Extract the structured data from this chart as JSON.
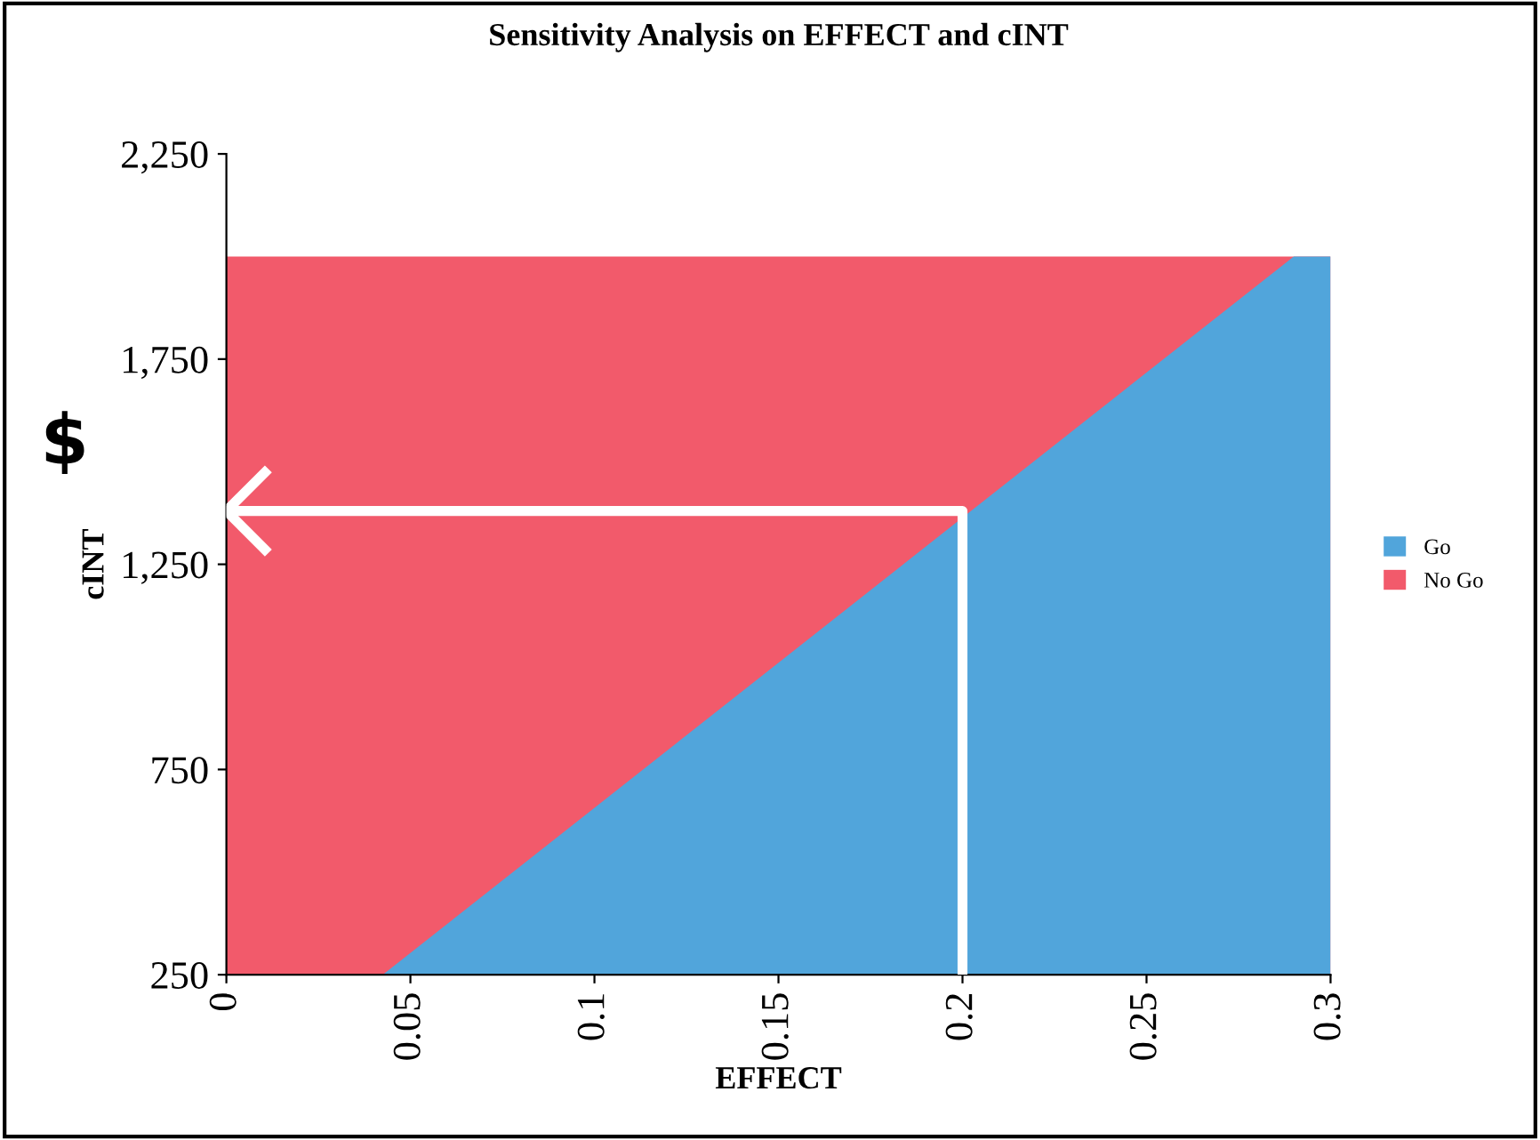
{
  "chart_data": {
    "type": "area",
    "title": "Sensitivity Analysis on EFFECT and cINT",
    "xlabel": "EFFECT",
    "ylabel": "cINT",
    "series": [
      {
        "name": "Go",
        "color": "#51a5db",
        "x": [
          0.0425,
          0.29,
          0.3
        ],
        "values": [
          250,
          2000,
          2000
        ]
      },
      {
        "name": "No Go",
        "color": "#f25a6b",
        "x": [
          0,
          0.3
        ],
        "values": [
          2000,
          2000
        ]
      },
      {
        "type": "line",
        "color": "#ffffff",
        "x": [
          0.2,
          0.2,
          0
        ],
        "values": [
          250,
          1380,
          1380
        ]
      }
    ],
    "annotations": [
      "$"
    ],
    "xlim": [
      0,
      0.3
    ],
    "xticks": [
      0,
      0.05,
      0.1,
      0.15,
      0.2,
      0.25,
      0.3
    ],
    "ylim": [
      250,
      2250
    ],
    "yticks": [
      {
        "value": 250,
        "label": "250"
      },
      {
        "value": 750,
        "label": "750"
      },
      {
        "value": 1250,
        "label": "1,250"
      },
      {
        "value": 1750,
        "label": "1,750"
      },
      {
        "value": 2250,
        "label": "2,250"
      }
    ],
    "grid": false,
    "legend": "right"
  }
}
